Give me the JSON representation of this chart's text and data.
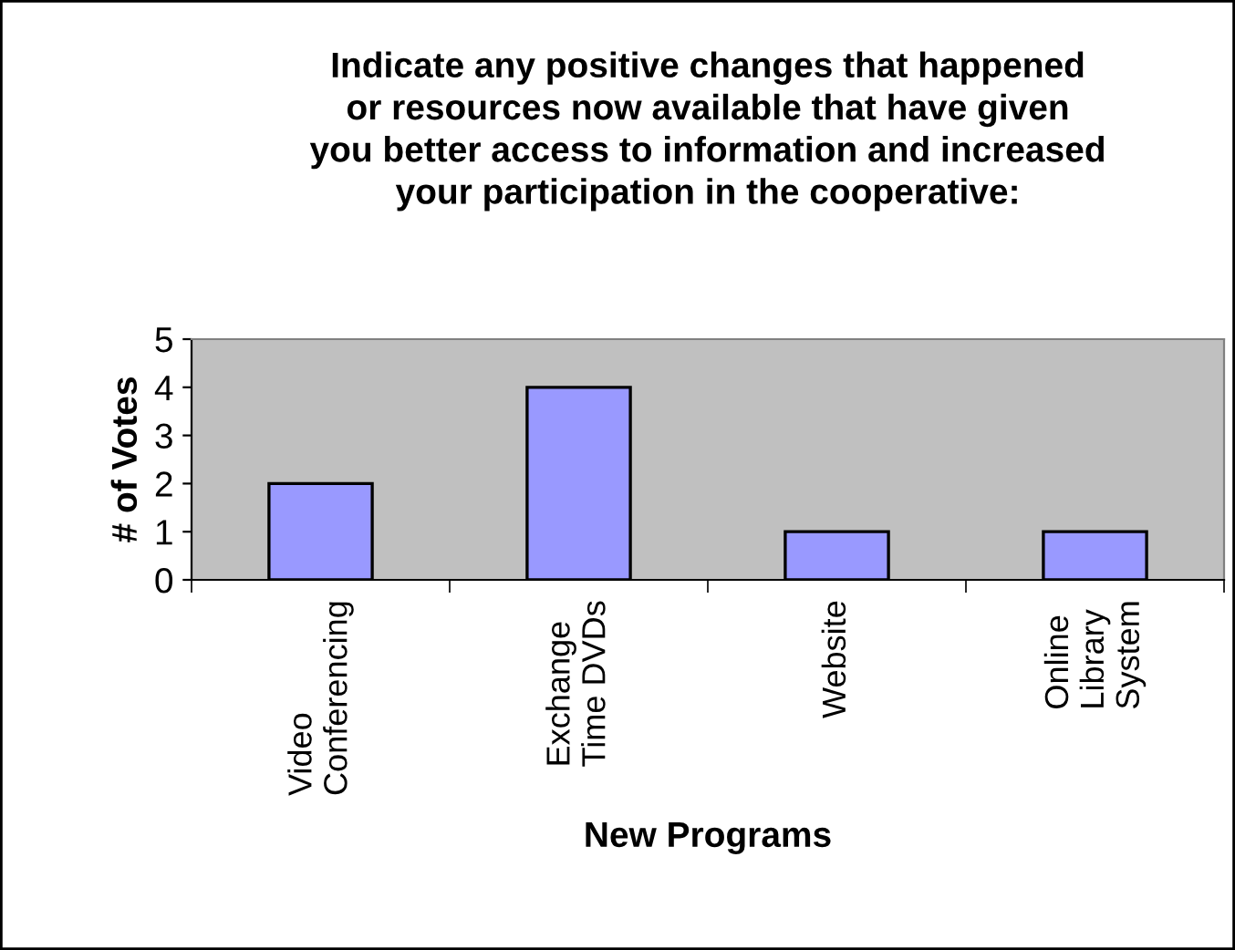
{
  "chart_data": {
    "type": "bar",
    "title": "Indicate any positive changes that happened\nor resources now available that have given\nyou better access to information and increased\nyour participation in the cooperative:",
    "xlabel": "New Programs",
    "ylabel": "# of Votes",
    "categories": [
      "Video\nConferencing",
      "Exchange\nTime DVDs",
      "Website",
      "Online\nLibrary\nSystem"
    ],
    "values": [
      2,
      4,
      1,
      1
    ],
    "color": "#9999ff",
    "ylim": [
      0,
      5
    ],
    "yticks": [
      0,
      1,
      2,
      3,
      4,
      5
    ],
    "grid": false,
    "legend": false
  }
}
